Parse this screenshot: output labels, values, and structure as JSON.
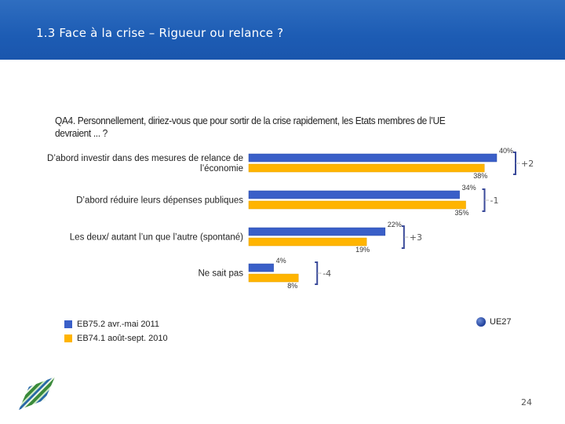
{
  "header": {
    "title": "1.3 Face à la crise – Rigueur ou relance ?"
  },
  "question": "QA4. Personnellement, diriez-vous que pour sortir de la crise rapidement, les Etats membres de l’UE devraient ... ?",
  "colors": {
    "current": "#3a5fc8",
    "previous": "#ffb400",
    "bracket": "#3a4a9a"
  },
  "chart_data": {
    "type": "bar",
    "orientation": "horizontal",
    "categories": [
      [
        "D’abord investir dans des mesures de relance de",
        "l’économie"
      ],
      [
        "D’abord réduire leurs dépenses publiques"
      ],
      [
        "Les deux/ autant l’un que l’autre (spontané)"
      ],
      [
        "Ne sait pas"
      ]
    ],
    "series": [
      {
        "name": "EB75.2 avr.-mai 2011",
        "values": [
          40,
          34,
          22,
          4
        ],
        "labels": [
          "40%",
          "34%",
          "22%",
          "4%"
        ]
      },
      {
        "name": "EB74.1 août-sept. 2010",
        "values": [
          38,
          35,
          19,
          8
        ],
        "labels": [
          "38%",
          "35%",
          "19%",
          "8%"
        ]
      }
    ],
    "differences": [
      "+2",
      "-1",
      "+3",
      "-4"
    ],
    "xlim": [
      0,
      45
    ],
    "legend": {
      "items": [
        "EB75.2 avr.-mai 2011",
        "EB74.1 août-sept. 2010"
      ],
      "placement": "bottom-left"
    },
    "scope_label": "UE27"
  },
  "page_number": "24"
}
